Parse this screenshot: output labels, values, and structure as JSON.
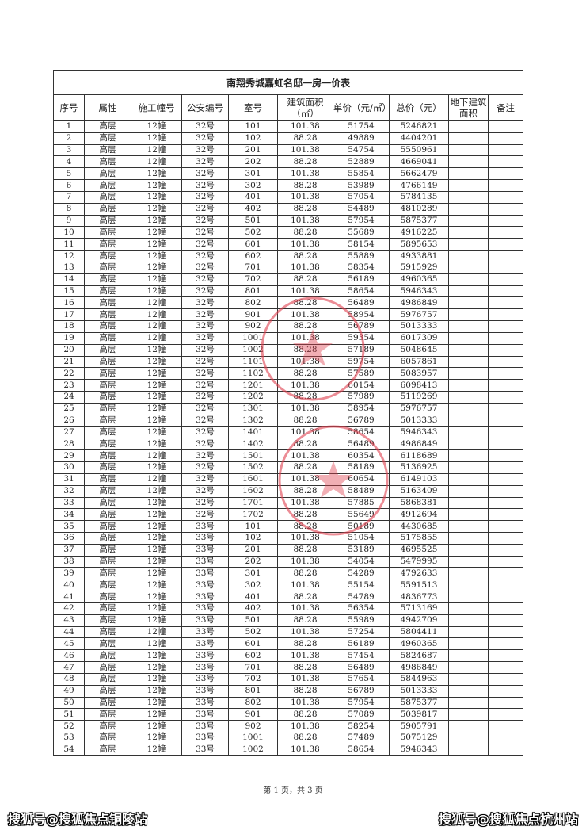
{
  "document": {
    "title": "南翔秀城嘉虹名邸一房一价表",
    "headers": [
      "序号",
      "属性",
      "施工幢号",
      "公安编号",
      "室号",
      "建筑面积（㎡）",
      "单价（元/㎡）",
      "总价（元）",
      "地下建筑面积",
      "备注"
    ],
    "footer": "第 1 页，共 3 页",
    "stamp_color": "#e0404f"
  },
  "table": {
    "rows": [
      [
        "1",
        "高层",
        "12幢",
        "32号",
        "101",
        "101.38",
        "51754",
        "5246821",
        "",
        ""
      ],
      [
        "2",
        "高层",
        "12幢",
        "32号",
        "102",
        "88.28",
        "49889",
        "4404201",
        "",
        ""
      ],
      [
        "3",
        "高层",
        "12幢",
        "32号",
        "201",
        "101.38",
        "54754",
        "5550961",
        "",
        ""
      ],
      [
        "4",
        "高层",
        "12幢",
        "32号",
        "202",
        "88.28",
        "52889",
        "4669041",
        "",
        ""
      ],
      [
        "5",
        "高层",
        "12幢",
        "32号",
        "301",
        "101.38",
        "55854",
        "5662479",
        "",
        ""
      ],
      [
        "6",
        "高层",
        "12幢",
        "32号",
        "302",
        "88.28",
        "53989",
        "4766149",
        "",
        ""
      ],
      [
        "7",
        "高层",
        "12幢",
        "32号",
        "401",
        "101.38",
        "57054",
        "5784135",
        "",
        ""
      ],
      [
        "8",
        "高层",
        "12幢",
        "32号",
        "402",
        "88.28",
        "54489",
        "4810289",
        "",
        ""
      ],
      [
        "9",
        "高层",
        "12幢",
        "32号",
        "501",
        "101.38",
        "57954",
        "5875377",
        "",
        ""
      ],
      [
        "10",
        "高层",
        "12幢",
        "32号",
        "502",
        "88.28",
        "55689",
        "4916225",
        "",
        ""
      ],
      [
        "11",
        "高层",
        "12幢",
        "32号",
        "601",
        "101.38",
        "58154",
        "5895653",
        "",
        ""
      ],
      [
        "12",
        "高层",
        "12幢",
        "32号",
        "602",
        "88.28",
        "55889",
        "4933881",
        "",
        ""
      ],
      [
        "13",
        "高层",
        "12幢",
        "32号",
        "701",
        "101.38",
        "58354",
        "5915929",
        "",
        ""
      ],
      [
        "14",
        "高层",
        "12幢",
        "32号",
        "702",
        "88.28",
        "56189",
        "4960365",
        "",
        ""
      ],
      [
        "15",
        "高层",
        "12幢",
        "32号",
        "801",
        "101.38",
        "58654",
        "5946343",
        "",
        ""
      ],
      [
        "16",
        "高层",
        "12幢",
        "32号",
        "802",
        "88.28",
        "56489",
        "4986849",
        "",
        ""
      ],
      [
        "17",
        "高层",
        "12幢",
        "32号",
        "901",
        "101.38",
        "58954",
        "5976757",
        "",
        ""
      ],
      [
        "18",
        "高层",
        "12幢",
        "32号",
        "902",
        "88.28",
        "56789",
        "5013333",
        "",
        ""
      ],
      [
        "19",
        "高层",
        "12幢",
        "32号",
        "1001",
        "101.38",
        "59354",
        "6017309",
        "",
        ""
      ],
      [
        "20",
        "高层",
        "12幢",
        "32号",
        "1002",
        "88.28",
        "57189",
        "5048645",
        "",
        ""
      ],
      [
        "21",
        "高层",
        "12幢",
        "32号",
        "1101",
        "101.38",
        "59754",
        "6057861",
        "",
        ""
      ],
      [
        "22",
        "高层",
        "12幢",
        "32号",
        "1102",
        "88.28",
        "57589",
        "5083957",
        "",
        ""
      ],
      [
        "23",
        "高层",
        "12幢",
        "32号",
        "1201",
        "101.38",
        "60154",
        "6098413",
        "",
        ""
      ],
      [
        "24",
        "高层",
        "12幢",
        "32号",
        "1202",
        "88.28",
        "57989",
        "5119269",
        "",
        ""
      ],
      [
        "25",
        "高层",
        "12幢",
        "32号",
        "1301",
        "101.38",
        "58954",
        "5976757",
        "",
        ""
      ],
      [
        "26",
        "高层",
        "12幢",
        "32号",
        "1302",
        "88.28",
        "56789",
        "5013333",
        "",
        ""
      ],
      [
        "27",
        "高层",
        "12幢",
        "32号",
        "1401",
        "101.38",
        "58654",
        "5946343",
        "",
        ""
      ],
      [
        "28",
        "高层",
        "12幢",
        "32号",
        "1402",
        "88.28",
        "56489",
        "4986849",
        "",
        ""
      ],
      [
        "29",
        "高层",
        "12幢",
        "32号",
        "1501",
        "101.38",
        "60354",
        "6118689",
        "",
        ""
      ],
      [
        "30",
        "高层",
        "12幢",
        "32号",
        "1502",
        "88.28",
        "58189",
        "5136925",
        "",
        ""
      ],
      [
        "31",
        "高层",
        "12幢",
        "32号",
        "1601",
        "101.38",
        "60654",
        "6149103",
        "",
        ""
      ],
      [
        "32",
        "高层",
        "12幢",
        "32号",
        "1602",
        "88.28",
        "58489",
        "5163409",
        "",
        ""
      ],
      [
        "33",
        "高层",
        "12幢",
        "32号",
        "1701",
        "101.38",
        "57885",
        "5868381",
        "",
        ""
      ],
      [
        "34",
        "高层",
        "12幢",
        "32号",
        "1702",
        "88.28",
        "55649",
        "4912694",
        "",
        ""
      ],
      [
        "35",
        "高层",
        "12幢",
        "33号",
        "101",
        "88.28",
        "50189",
        "4430685",
        "",
        ""
      ],
      [
        "36",
        "高层",
        "12幢",
        "33号",
        "102",
        "101.38",
        "51054",
        "5175855",
        "",
        ""
      ],
      [
        "37",
        "高层",
        "12幢",
        "33号",
        "201",
        "88.28",
        "53189",
        "4695525",
        "",
        ""
      ],
      [
        "38",
        "高层",
        "12幢",
        "33号",
        "202",
        "101.38",
        "54054",
        "5479995",
        "",
        ""
      ],
      [
        "39",
        "高层",
        "12幢",
        "33号",
        "301",
        "88.28",
        "54289",
        "4792633",
        "",
        ""
      ],
      [
        "40",
        "高层",
        "12幢",
        "33号",
        "302",
        "101.38",
        "55154",
        "5591513",
        "",
        ""
      ],
      [
        "41",
        "高层",
        "12幢",
        "33号",
        "401",
        "88.28",
        "54789",
        "4836773",
        "",
        ""
      ],
      [
        "42",
        "高层",
        "12幢",
        "33号",
        "402",
        "101.38",
        "56354",
        "5713169",
        "",
        ""
      ],
      [
        "43",
        "高层",
        "12幢",
        "33号",
        "501",
        "88.28",
        "55989",
        "4942709",
        "",
        ""
      ],
      [
        "44",
        "高层",
        "12幢",
        "33号",
        "502",
        "101.38",
        "57254",
        "5804411",
        "",
        ""
      ],
      [
        "45",
        "高层",
        "12幢",
        "33号",
        "601",
        "88.28",
        "56189",
        "4960365",
        "",
        ""
      ],
      [
        "46",
        "高层",
        "12幢",
        "33号",
        "602",
        "101.38",
        "57454",
        "5824687",
        "",
        ""
      ],
      [
        "47",
        "高层",
        "12幢",
        "33号",
        "701",
        "88.28",
        "56489",
        "4986849",
        "",
        ""
      ],
      [
        "48",
        "高层",
        "12幢",
        "33号",
        "702",
        "101.38",
        "57654",
        "5844963",
        "",
        ""
      ],
      [
        "49",
        "高层",
        "12幢",
        "33号",
        "801",
        "88.28",
        "56789",
        "5013333",
        "",
        ""
      ],
      [
        "50",
        "高层",
        "12幢",
        "33号",
        "802",
        "101.38",
        "57954",
        "5875377",
        "",
        ""
      ],
      [
        "51",
        "高层",
        "12幢",
        "33号",
        "901",
        "88.28",
        "57089",
        "5039817",
        "",
        ""
      ],
      [
        "52",
        "高层",
        "12幢",
        "33号",
        "902",
        "101.38",
        "58254",
        "5905791",
        "",
        ""
      ],
      [
        "53",
        "高层",
        "12幢",
        "33号",
        "1001",
        "88.28",
        "57489",
        "5075129",
        "",
        ""
      ],
      [
        "54",
        "高层",
        "12幢",
        "33号",
        "1002",
        "101.38",
        "58654",
        "5946343",
        "",
        ""
      ]
    ]
  },
  "watermarks": {
    "left": "搜狐号@搜狐焦点铜陵站",
    "right": "搜狐号@搜狐焦点杭州站"
  }
}
